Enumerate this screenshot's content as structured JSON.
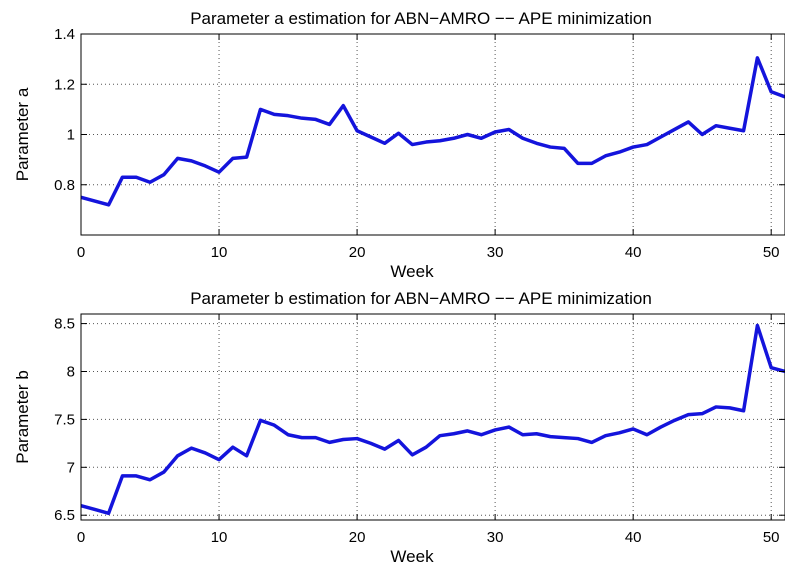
{
  "chart_data": [
    {
      "type": "line",
      "title": "Parameter a estimation for ABN−AMRO −− APE minimization",
      "xlabel": "Week",
      "ylabel": "Parameter a",
      "xlim": [
        0,
        51
      ],
      "ylim": [
        0.6,
        1.4
      ],
      "xticks": [
        0,
        10,
        20,
        30,
        40,
        50
      ],
      "xtick_labels": [
        "0",
        "10",
        "20",
        "30",
        "40",
        "50"
      ],
      "yticks": [
        0.8,
        1.0,
        1.2,
        1.4
      ],
      "ytick_labels": [
        "0.8",
        "1",
        "1.2",
        "1.4"
      ],
      "grid": true,
      "grid_style": "dotted",
      "line_color": "#1414dc",
      "series": [
        {
          "x": [
            0,
            1,
            2,
            3,
            4,
            5,
            6,
            7,
            8,
            9,
            10,
            11,
            12,
            13,
            14,
            15,
            16,
            17,
            18,
            19,
            20,
            21,
            22,
            23,
            24,
            25,
            26,
            27,
            28,
            29,
            30,
            31,
            32,
            33,
            34,
            35,
            36,
            37,
            38,
            39,
            40,
            41,
            42,
            43,
            44,
            45,
            46,
            47,
            48,
            49,
            50,
            51
          ],
          "values": [
            0.75,
            0.735,
            0.72,
            0.83,
            0.83,
            0.81,
            0.84,
            0.905,
            0.895,
            0.875,
            0.85,
            0.905,
            0.91,
            1.1,
            1.08,
            1.075,
            1.065,
            1.06,
            1.04,
            1.115,
            1.015,
            0.99,
            0.965,
            1.005,
            0.96,
            0.97,
            0.975,
            0.985,
            1.0,
            0.985,
            1.01,
            1.02,
            0.985,
            0.965,
            0.95,
            0.945,
            0.885,
            0.885,
            0.915,
            0.93,
            0.95,
            0.96,
            0.99,
            1.02,
            1.05,
            1.0,
            1.035,
            1.025,
            1.015,
            1.305,
            1.17,
            1.15
          ]
        }
      ]
    },
    {
      "type": "line",
      "title": "Parameter b estimation for ABN−AMRO −− APE minimization",
      "xlabel": "Week",
      "ylabel": "Parameter b",
      "xlim": [
        0,
        51
      ],
      "ylim": [
        6.45,
        8.6
      ],
      "xticks": [
        0,
        10,
        20,
        30,
        40,
        50
      ],
      "xtick_labels": [
        "0",
        "10",
        "20",
        "30",
        "40",
        "50"
      ],
      "yticks": [
        6.5,
        7.0,
        7.5,
        8.0,
        8.5
      ],
      "ytick_labels": [
        "6.5",
        "7",
        "7.5",
        "8",
        "8.5"
      ],
      "grid": true,
      "grid_style": "dotted",
      "line_color": "#1414dc",
      "series": [
        {
          "x": [
            0,
            1,
            2,
            3,
            4,
            5,
            6,
            7,
            8,
            9,
            10,
            11,
            12,
            13,
            14,
            15,
            16,
            17,
            18,
            19,
            20,
            21,
            22,
            23,
            24,
            25,
            26,
            27,
            28,
            29,
            30,
            31,
            32,
            33,
            34,
            35,
            36,
            37,
            38,
            39,
            40,
            41,
            42,
            43,
            44,
            45,
            46,
            47,
            48,
            49,
            50,
            51
          ],
          "values": [
            6.6,
            6.56,
            6.52,
            6.91,
            6.91,
            6.87,
            6.95,
            7.12,
            7.2,
            7.15,
            7.08,
            7.21,
            7.12,
            7.49,
            7.44,
            7.34,
            7.31,
            7.31,
            7.26,
            7.29,
            7.3,
            7.25,
            7.19,
            7.28,
            7.13,
            7.21,
            7.33,
            7.35,
            7.38,
            7.34,
            7.39,
            7.42,
            7.34,
            7.35,
            7.32,
            7.31,
            7.3,
            7.26,
            7.33,
            7.36,
            7.4,
            7.34,
            7.42,
            7.49,
            7.55,
            7.56,
            7.63,
            7.62,
            7.59,
            8.48,
            8.04,
            8.0
          ]
        }
      ]
    }
  ]
}
